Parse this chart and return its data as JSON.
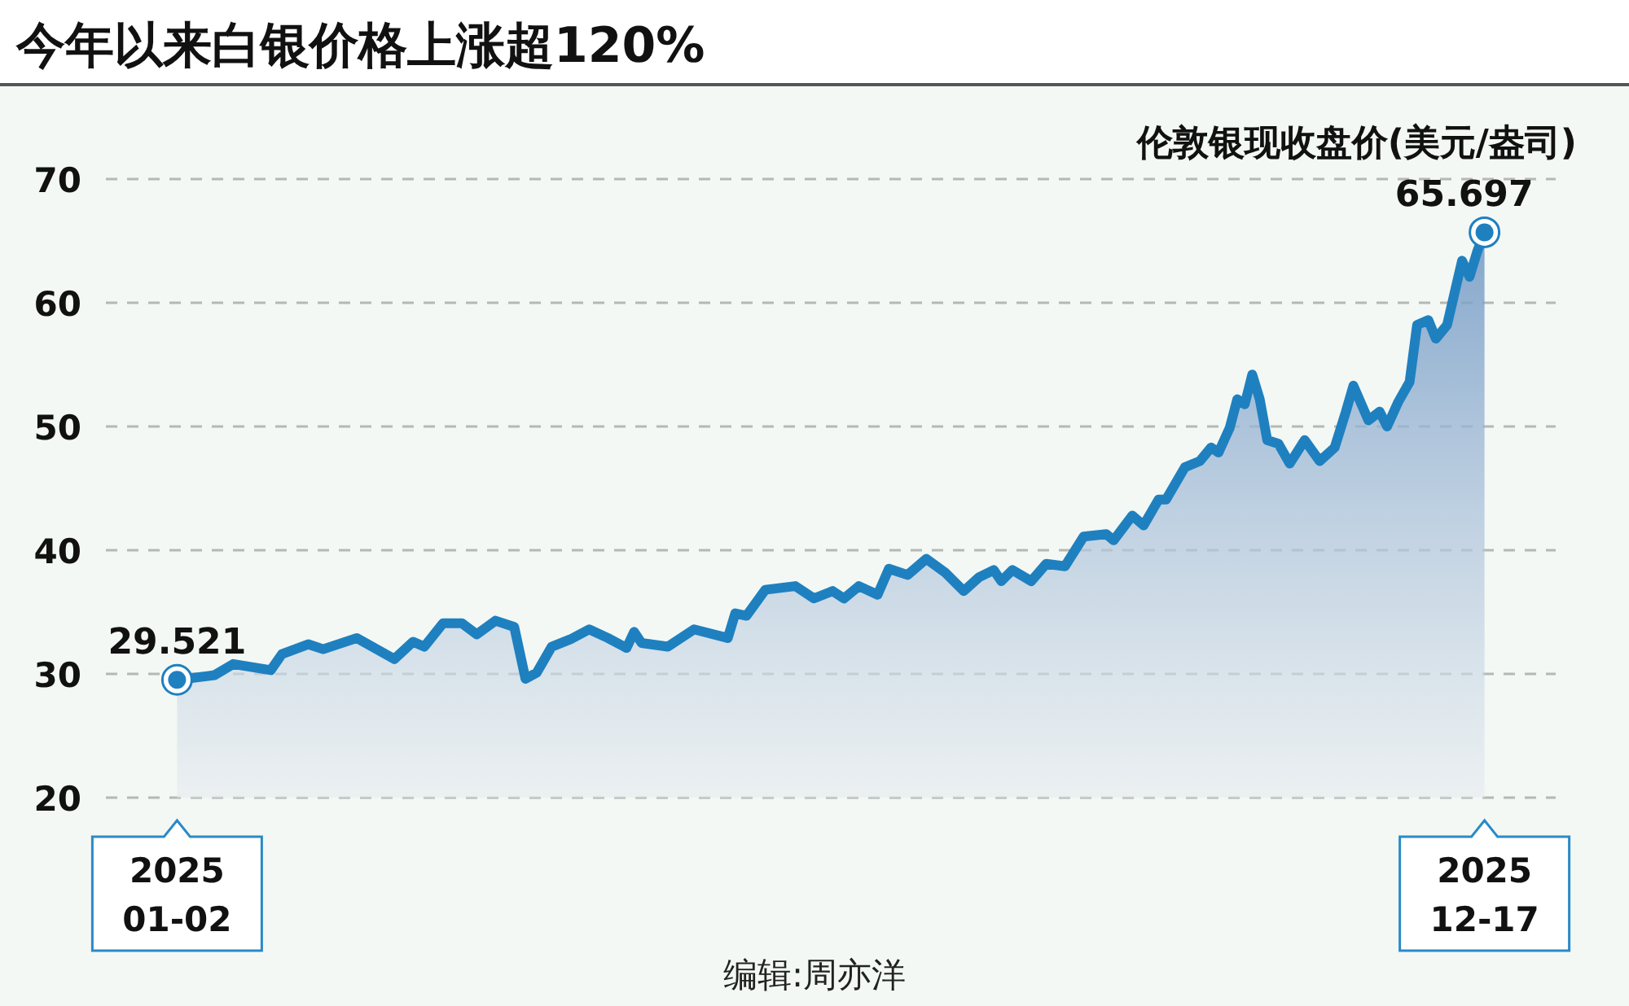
{
  "chart_data": {
    "type": "area",
    "title": "今年以来白银价格上涨超120%",
    "ylabel": "伦敦银现收盘价(美元/盎司)",
    "x": [
      "2025-01-02",
      "2025-01-12",
      "2025-01-17",
      "2025-01-27",
      "2025-01-30",
      "2025-02-06",
      "2025-02-10",
      "2025-02-19",
      "2025-03-01",
      "2025-03-06",
      "2025-03-09",
      "2025-03-14",
      "2025-03-19",
      "2025-03-23",
      "2025-03-28",
      "2025-04-02",
      "2025-04-05",
      "2025-04-08",
      "2025-04-12",
      "2025-04-17",
      "2025-04-22",
      "2025-04-27",
      "2025-05-02",
      "2025-05-04",
      "2025-05-06",
      "2025-05-13",
      "2025-05-20",
      "2025-05-29",
      "2025-05-31",
      "2025-06-03",
      "2025-06-08",
      "2025-06-16",
      "2025-06-21",
      "2025-06-26",
      "2025-06-29",
      "2025-07-03",
      "2025-07-08",
      "2025-07-11",
      "2025-07-16",
      "2025-07-21",
      "2025-07-26",
      "2025-07-31",
      "2025-08-04",
      "2025-08-08",
      "2025-08-10",
      "2025-08-13",
      "2025-08-18",
      "2025-08-22",
      "2025-08-27",
      "2025-09-01",
      "2025-09-07",
      "2025-09-09",
      "2025-09-14",
      "2025-09-17",
      "2025-09-21",
      "2025-09-23",
      "2025-09-28",
      "2025-10-02",
      "2025-10-05",
      "2025-10-07",
      "2025-10-10",
      "2025-10-12",
      "2025-10-14",
      "2025-10-16",
      "2025-10-18",
      "2025-10-20",
      "2025-10-23",
      "2025-10-26",
      "2025-10-30",
      "2025-11-03",
      "2025-11-07",
      "2025-11-10",
      "2025-11-12",
      "2025-11-16",
      "2025-11-19",
      "2025-11-21",
      "2025-11-24",
      "2025-11-27",
      "2025-11-29",
      "2025-12-02",
      "2025-12-04",
      "2025-12-07",
      "2025-12-11",
      "2025-12-13",
      "2025-12-15",
      "2025-12-17"
    ],
    "series": [
      {
        "color": "#1f80c0",
        "values": [
          29.521,
          29.9,
          30.8,
          30.3,
          31.6,
          32.4,
          32.0,
          32.9,
          31.2,
          32.6,
          32.2,
          34.1,
          34.1,
          33.2,
          34.3,
          33.8,
          29.6,
          30.1,
          32.2,
          32.8,
          33.6,
          32.9,
          32.1,
          33.4,
          32.5,
          32.2,
          33.6,
          32.9,
          34.9,
          34.7,
          36.8,
          37.1,
          36.1,
          36.7,
          36.1,
          37.1,
          36.4,
          38.5,
          38.0,
          39.3,
          38.2,
          36.7,
          37.8,
          38.4,
          37.5,
          38.4,
          37.5,
          38.9,
          38.7,
          41.1,
          41.3,
          40.8,
          42.8,
          42.0,
          44.1,
          44.1,
          46.7,
          47.2,
          48.3,
          47.9,
          49.9,
          52.2,
          51.8,
          54.2,
          52.2,
          48.9,
          48.6,
          47.0,
          48.9,
          47.2,
          48.3,
          51.2,
          53.3,
          50.5,
          51.2,
          50.0,
          52.0,
          53.6,
          58.2,
          58.6,
          57.1,
          58.2,
          63.4,
          62.1,
          64.1,
          65.697
        ]
      }
    ],
    "xlim": [
      "2024-12-14",
      "2026-01-05"
    ],
    "xticks": [
      {
        "value": "2025-01-02",
        "label": "2025\n01-02"
      },
      {
        "value": "2025-12-17",
        "label": "2025\n12-17"
      }
    ],
    "ylim": [
      20,
      70
    ],
    "yticks": [
      20,
      30,
      40,
      50,
      60,
      70
    ],
    "grid": "y",
    "annotations": [
      {
        "text": "29.521",
        "x": "2025-01-02",
        "y": 29.521
      },
      {
        "text": "65.697",
        "x": "2025-12-17",
        "y": 65.697
      },
      "编辑:周亦洋"
    ]
  }
}
